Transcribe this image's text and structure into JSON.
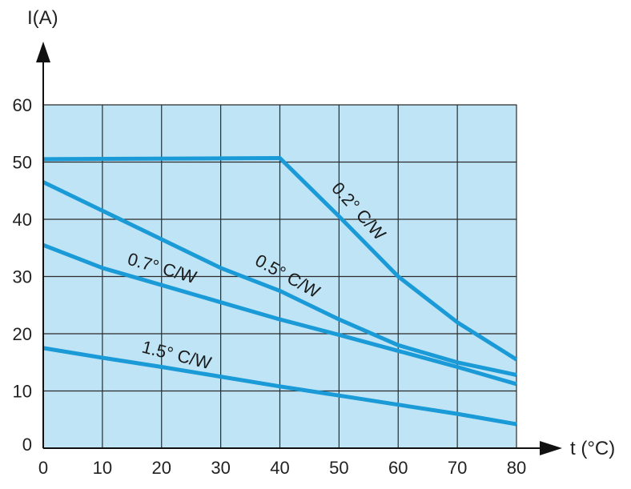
{
  "chart_data": {
    "type": "line",
    "title": "",
    "xlabel": "t (°C)",
    "ylabel": "I(A)",
    "xlim": [
      0,
      80
    ],
    "ylim": [
      0,
      60
    ],
    "x_ticks": [
      "0",
      "10",
      "20",
      "30",
      "40",
      "50",
      "60",
      "70",
      "80"
    ],
    "y_ticks": [
      "0",
      "10",
      "20",
      "30",
      "40",
      "50",
      "60"
    ],
    "grid": true,
    "plot_background": "#bfe4f5",
    "line_color": "#1a9ad6",
    "series": [
      {
        "name": "0.2° C/W",
        "points": [
          [
            0,
            50.5
          ],
          [
            40,
            50.7
          ],
          [
            50,
            40.5
          ],
          [
            60,
            30
          ],
          [
            70,
            22
          ],
          [
            80,
            15.5
          ]
        ]
      },
      {
        "name": "0.5° C/W",
        "points": [
          [
            0,
            46.5
          ],
          [
            10,
            41.5
          ],
          [
            20,
            36.5
          ],
          [
            30,
            31.5
          ],
          [
            40,
            27.5
          ],
          [
            50,
            22.5
          ],
          [
            60,
            18
          ],
          [
            70,
            15
          ],
          [
            80,
            12.8
          ]
        ]
      },
      {
        "name": "0.7° C/W",
        "points": [
          [
            0,
            35.5
          ],
          [
            10,
            31.5
          ],
          [
            20,
            28.5
          ],
          [
            30,
            25.5
          ],
          [
            40,
            22.5
          ],
          [
            50,
            19.8
          ],
          [
            60,
            17
          ],
          [
            70,
            14.2
          ],
          [
            80,
            11.2
          ]
        ]
      },
      {
        "name": "1.5° C/W",
        "points": [
          [
            0,
            17.5
          ],
          [
            10,
            15.8
          ],
          [
            20,
            14.2
          ],
          [
            30,
            12.5
          ],
          [
            40,
            10.8
          ],
          [
            50,
            9.2
          ],
          [
            60,
            7.6
          ],
          [
            70,
            6
          ],
          [
            80,
            4.2
          ]
        ]
      }
    ]
  }
}
